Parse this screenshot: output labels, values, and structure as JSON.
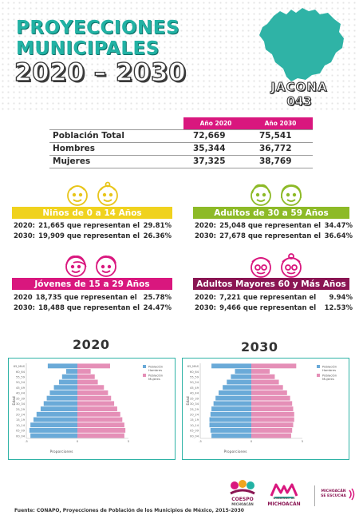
{
  "header": {
    "line1": "PROYECCIONES",
    "line2": "MUNICIPALES",
    "line3": "2020 – 2030",
    "municipality": "JACONA",
    "code": "043"
  },
  "population_table": {
    "col_2020": "Año 2020",
    "col_2030": "Año 2030",
    "rows": [
      {
        "label": "Población Total",
        "v2020": "72,669",
        "v2030": "75,541"
      },
      {
        "label": "Hombres",
        "v2020": "35,344",
        "v2030": "36,772"
      },
      {
        "label": "Mujeres",
        "v2020": "37,325",
        "v2030": "38,769"
      }
    ]
  },
  "groups": {
    "ninos": {
      "title": "Niños de 0 a 14 Años",
      "color": "#f0d21e",
      "r2020": {
        "year": "2020:",
        "text": "21,665 que representan el",
        "pct": "29.81%"
      },
      "r2030": {
        "year": "2030:",
        "text": "19,909 que representan el",
        "pct": "26.36%"
      }
    },
    "adultos": {
      "title": "Adultos de 30 a 59 Años",
      "color": "#8dba27",
      "r2020": {
        "year": "2020:",
        "text": "25,048 que representan el",
        "pct": "34.47%"
      },
      "r2030": {
        "year": "2030:",
        "text": "27,678 que representan el",
        "pct": "36.64%"
      }
    },
    "jovenes": {
      "title": "Jóvenes de 15 a 29 Años",
      "color": "#d9177e",
      "r2020": {
        "year": "2020",
        "text": "18,735 que representan el",
        "pct": "25.78%"
      },
      "r2030": {
        "year": "2030:",
        "text": "18,488 que representan el",
        "pct": "24.47%"
      }
    },
    "mayores": {
      "title": "Adultos Mayores  60 y Más Años",
      "color": "#8a1553",
      "r2020": {
        "year": "2020:",
        "text": "7,221 que representan el",
        "pct": "9.94%"
      },
      "r2030": {
        "year": "2030:",
        "text": "9,466 que representan el",
        "pct": "12.53%"
      }
    }
  },
  "chart_data": [
    {
      "type": "bar",
      "title": "2020",
      "xlabel": "Proporciones",
      "ylabel": "Edad",
      "categories": [
        "65_MAS",
        "60_64",
        "55_59",
        "50_54",
        "45_49",
        "40_44",
        "35_39",
        "30_34",
        "25_29",
        "20_24",
        "15_19",
        "10_14",
        "05_09",
        "00_04"
      ],
      "series": [
        {
          "name": "Población Hombres",
          "color": "#6aaad8",
          "values": [
            -2.9,
            -1.1,
            -1.5,
            -1.8,
            -2.3,
            -2.7,
            -3.0,
            -3.3,
            -3.6,
            -4.0,
            -4.3,
            -4.6,
            -4.7,
            -4.6
          ]
        },
        {
          "name": "Población Mujeres",
          "color": "#e58fb7",
          "values": [
            3.2,
            1.3,
            1.7,
            2.0,
            2.6,
            3.0,
            3.3,
            3.6,
            3.9,
            4.2,
            4.4,
            4.6,
            4.7,
            4.6
          ]
        }
      ],
      "xlim": [
        -5,
        5
      ]
    },
    {
      "type": "bar",
      "title": "2030",
      "xlabel": "Proporciones",
      "ylabel": "Edad",
      "categories": [
        "65_MAS",
        "60_64",
        "55_59",
        "50_54",
        "45_49",
        "40_44",
        "35_39",
        "30_34",
        "25_29",
        "20_24",
        "15_19",
        "10_14",
        "05_09",
        "00_04"
      ],
      "series": [
        {
          "name": "Población Hombres",
          "color": "#6aaad8",
          "values": [
            -3.9,
            -1.6,
            -2.0,
            -2.4,
            -2.8,
            -3.2,
            -3.5,
            -3.7,
            -3.9,
            -4.0,
            -4.1,
            -4.1,
            -4.0,
            -3.9
          ]
        },
        {
          "name": "Población Mujeres",
          "color": "#e58fb7",
          "values": [
            4.4,
            1.8,
            2.3,
            2.7,
            3.1,
            3.5,
            3.8,
            4.0,
            4.1,
            4.2,
            4.2,
            4.1,
            4.0,
            3.9
          ]
        }
      ],
      "xlim": [
        -5,
        5
      ]
    }
  ],
  "footer": {
    "source": "Fuente: CONAPO, Proyecciones de Población de los Municipios de México, 2015-2030"
  },
  "logos": {
    "coespo": "COESPO",
    "coespo_sub": "MICHOACÁN",
    "gob": "MICHOACÁN",
    "gob_top": "GOBIERNO DE",
    "escucha1": "MICHOACÁN",
    "escucha2": "SE ESCUCHA"
  }
}
